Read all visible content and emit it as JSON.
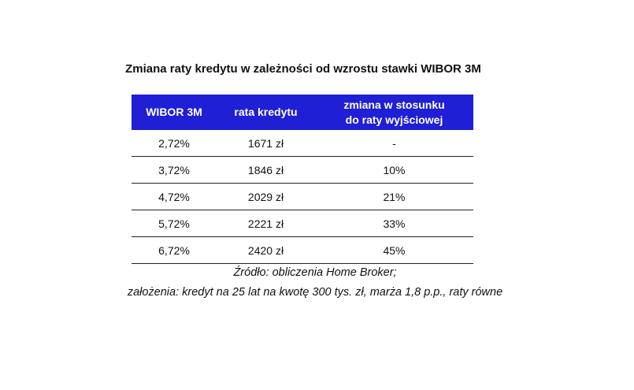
{
  "title": "Zmiana raty kredytu w zależności od wzrostu stawki WIBOR 3M",
  "table": {
    "header": [
      [
        "WIBOR 3M"
      ],
      [
        "rata kredytu"
      ],
      [
        "zmiana w stosunku",
        "do raty wyjściowej"
      ]
    ],
    "rows": [
      [
        "2,72%",
        "1671 zł",
        "-"
      ],
      [
        "3,72%",
        "1846 zł",
        "10%"
      ],
      [
        "4,72%",
        "2029 zł",
        "21%"
      ],
      [
        "5,72%",
        "2221 zł",
        "33%"
      ],
      [
        "6,72%",
        "2420 zł",
        "45%"
      ]
    ]
  },
  "notes": [
    "Źródło: obliczenia Home Broker;",
    "założenia: kredyt na 25 lat na kwotę 300 tys. zł, marża 1,8 p.p., raty równe"
  ]
}
